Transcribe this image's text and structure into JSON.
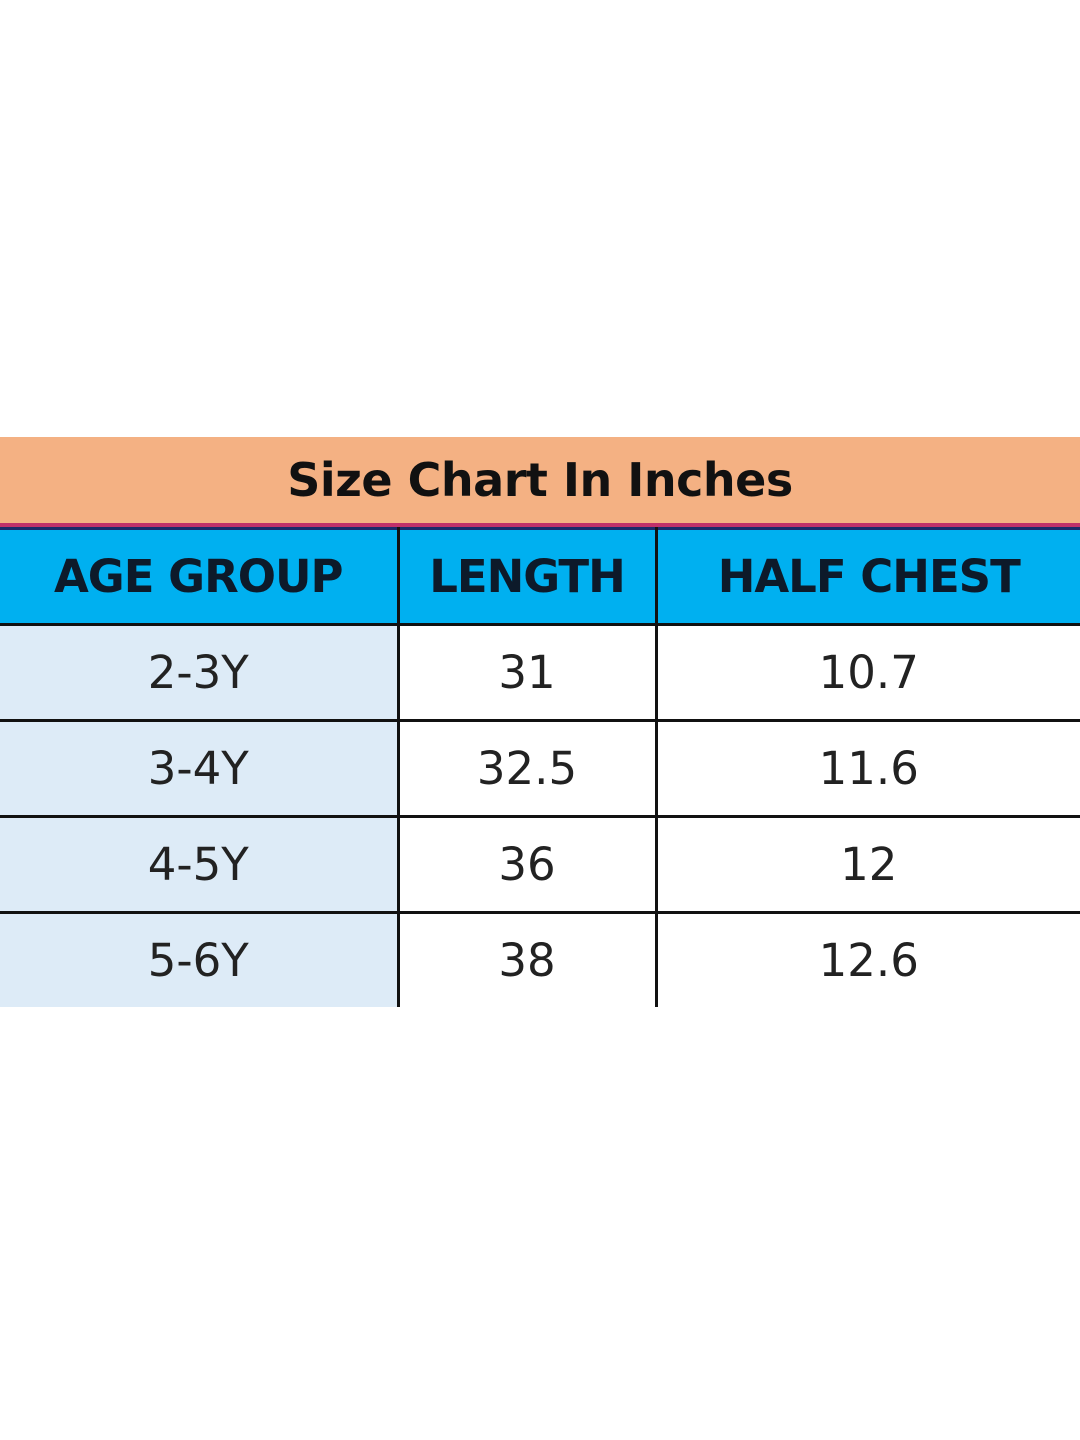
{
  "title": "Size Chart In Inches",
  "colors": {
    "title_bg": "#F4B183",
    "header_bg": "#00B0F0",
    "age_col_bg": "#DDEBF7"
  },
  "columns": [
    "AGE GROUP",
    "LENGTH",
    "HALF CHEST"
  ],
  "rows": [
    [
      "2-3Y",
      "31",
      "10.7"
    ],
    [
      "3-4Y",
      "32.5",
      "11.6"
    ],
    [
      "4-5Y",
      "36",
      "12"
    ],
    [
      "5-6Y",
      "38",
      "12.6"
    ]
  ]
}
